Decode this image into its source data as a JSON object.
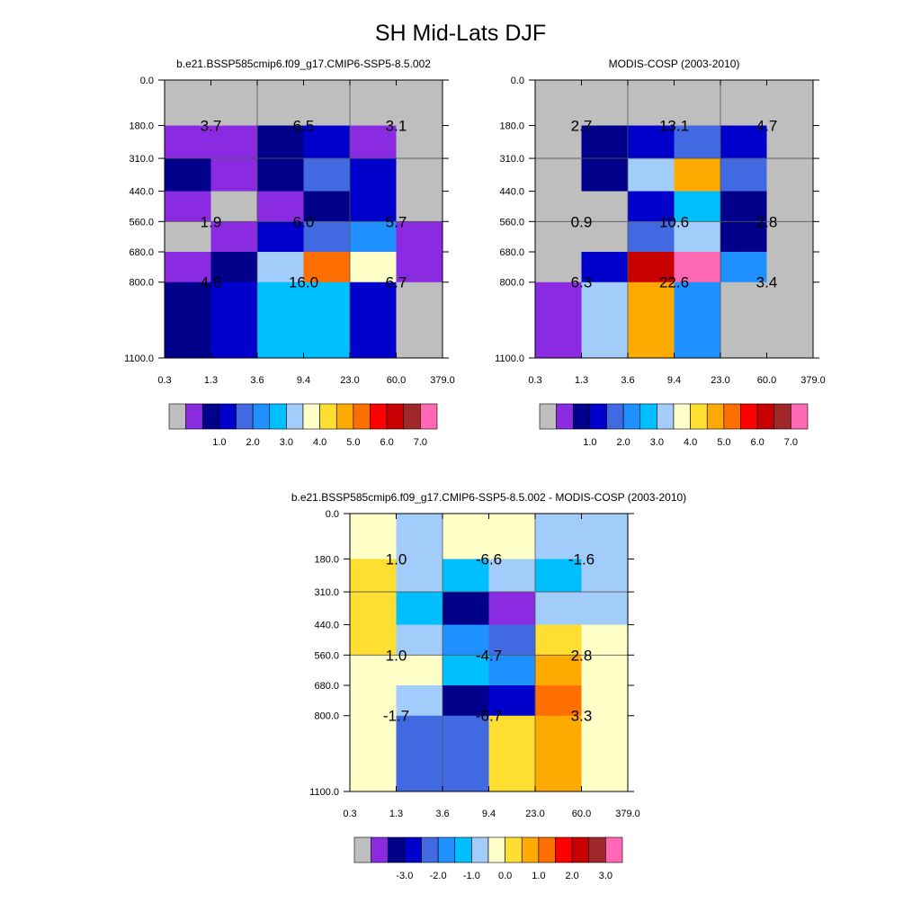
{
  "title": "SH Mid-Lats DJF",
  "colors": {
    "missing": "#bebebe",
    "palette": [
      "#bebebe",
      "#8a2be2",
      "#00008b",
      "#0000cd",
      "#4169e1",
      "#1e90ff",
      "#00bfff",
      "#a2cdfa",
      "#ffffc8",
      "#ffde32",
      "#ffaa00",
      "#ff6e00",
      "#ff0000",
      "#c80000",
      "#a02828",
      "#ff69b4"
    ]
  },
  "chart_data": [
    {
      "type": "heatmap",
      "title": "b.e21.BSSP585cmip6.f09_g17.CMIP6-SSP5-8.5.002",
      "x_ticks": [
        "0.3",
        "1.3",
        "3.6",
        "9.4",
        "23.0",
        "60.0",
        "379.0"
      ],
      "y_ticks": [
        "0.0",
        "180.0",
        "310.0",
        "440.0",
        "560.0",
        "680.0",
        "800.0",
        "1100.0"
      ],
      "cell_colors": [
        [
          0,
          0,
          0,
          0,
          0,
          0
        ],
        [
          1,
          1,
          2,
          3,
          1,
          0
        ],
        [
          2,
          1,
          2,
          4,
          3,
          0
        ],
        [
          1,
          0,
          1,
          2,
          3,
          0
        ],
        [
          0,
          1,
          3,
          4,
          5,
          1
        ],
        [
          1,
          2,
          7,
          11,
          8,
          1
        ],
        [
          2,
          3,
          6,
          6,
          3,
          0
        ]
      ],
      "cell_values": [
        {
          "col": 0,
          "row": 1,
          "text": "3.7"
        },
        {
          "col": 2,
          "row": 1,
          "text": "6.5"
        },
        {
          "col": 4,
          "row": 1,
          "text": "3.1"
        },
        {
          "col": 0,
          "row": 4,
          "text": "1.9"
        },
        {
          "col": 2,
          "row": 4,
          "text": "6.0"
        },
        {
          "col": 4,
          "row": 4,
          "text": "5.7"
        },
        {
          "col": 0,
          "row": 6,
          "text": "4.6"
        },
        {
          "col": 2,
          "row": 6,
          "text": "16.0"
        },
        {
          "col": 4,
          "row": 6,
          "text": "6.7"
        }
      ],
      "colorbar_labels": [
        "1.0",
        "2.0",
        "3.0",
        "4.0",
        "5.0",
        "6.0",
        "7.0"
      ]
    },
    {
      "type": "heatmap",
      "title": "MODIS-COSP (2003-2010)",
      "x_ticks": [
        "0.3",
        "1.3",
        "3.6",
        "9.4",
        "23.0",
        "60.0",
        "379.0"
      ],
      "y_ticks": [
        "0.0",
        "180.0",
        "310.0",
        "440.0",
        "560.0",
        "680.0",
        "800.0",
        "1100.0"
      ],
      "cell_colors": [
        [
          0,
          0,
          0,
          0,
          0,
          0
        ],
        [
          0,
          2,
          3,
          4,
          3,
          0
        ],
        [
          0,
          2,
          7,
          10,
          4,
          0
        ],
        [
          0,
          0,
          3,
          6,
          2,
          0
        ],
        [
          0,
          0,
          4,
          7,
          2,
          0
        ],
        [
          0,
          3,
          13,
          15,
          5,
          0
        ],
        [
          1,
          7,
          10,
          5,
          0,
          0
        ]
      ],
      "cell_values": [
        {
          "col": 0,
          "row": 1,
          "text": "2.7"
        },
        {
          "col": 2,
          "row": 1,
          "text": "13.1"
        },
        {
          "col": 4,
          "row": 1,
          "text": "4.7"
        },
        {
          "col": 0,
          "row": 4,
          "text": "0.9"
        },
        {
          "col": 2,
          "row": 4,
          "text": "10.6"
        },
        {
          "col": 4,
          "row": 4,
          "text": "2.8"
        },
        {
          "col": 0,
          "row": 6,
          "text": "6.3"
        },
        {
          "col": 2,
          "row": 6,
          "text": "22.6"
        },
        {
          "col": 4,
          "row": 6,
          "text": "3.4"
        }
      ],
      "colorbar_labels": [
        "1.0",
        "2.0",
        "3.0",
        "4.0",
        "5.0",
        "6.0",
        "7.0"
      ]
    },
    {
      "type": "heatmap",
      "title": "b.e21.BSSP585cmip6.f09_g17.CMIP6-SSP5-8.5.002 - MODIS-COSP (2003-2010)",
      "x_ticks": [
        "0.3",
        "1.3",
        "3.6",
        "9.4",
        "23.0",
        "60.0",
        "379.0"
      ],
      "y_ticks": [
        "0.0",
        "180.0",
        "310.0",
        "440.0",
        "560.0",
        "680.0",
        "800.0",
        "1100.0"
      ],
      "cell_colors": [
        [
          8,
          7,
          8,
          8,
          7,
          7
        ],
        [
          9,
          7,
          6,
          7,
          6,
          7
        ],
        [
          9,
          6,
          2,
          1,
          7,
          7
        ],
        [
          9,
          7,
          5,
          4,
          9,
          8
        ],
        [
          8,
          8,
          6,
          5,
          10,
          8
        ],
        [
          8,
          7,
          2,
          3,
          11,
          8
        ],
        [
          8,
          4,
          4,
          9,
          10,
          8
        ]
      ],
      "cell_values": [
        {
          "col": 0,
          "row": 1,
          "text": "1.0"
        },
        {
          "col": 2,
          "row": 1,
          "text": "-6.6"
        },
        {
          "col": 4,
          "row": 1,
          "text": "-1.6"
        },
        {
          "col": 0,
          "row": 4,
          "text": "1.0"
        },
        {
          "col": 2,
          "row": 4,
          "text": "-4.7"
        },
        {
          "col": 4,
          "row": 4,
          "text": "2.8"
        },
        {
          "col": 0,
          "row": 6,
          "text": "-1.7"
        },
        {
          "col": 2,
          "row": 6,
          "text": "-6.7"
        },
        {
          "col": 4,
          "row": 6,
          "text": "3.3"
        }
      ],
      "colorbar_labels": [
        "-3.0",
        "-2.0",
        "-1.0",
        "0.0",
        "1.0",
        "2.0",
        "3.0"
      ]
    }
  ]
}
